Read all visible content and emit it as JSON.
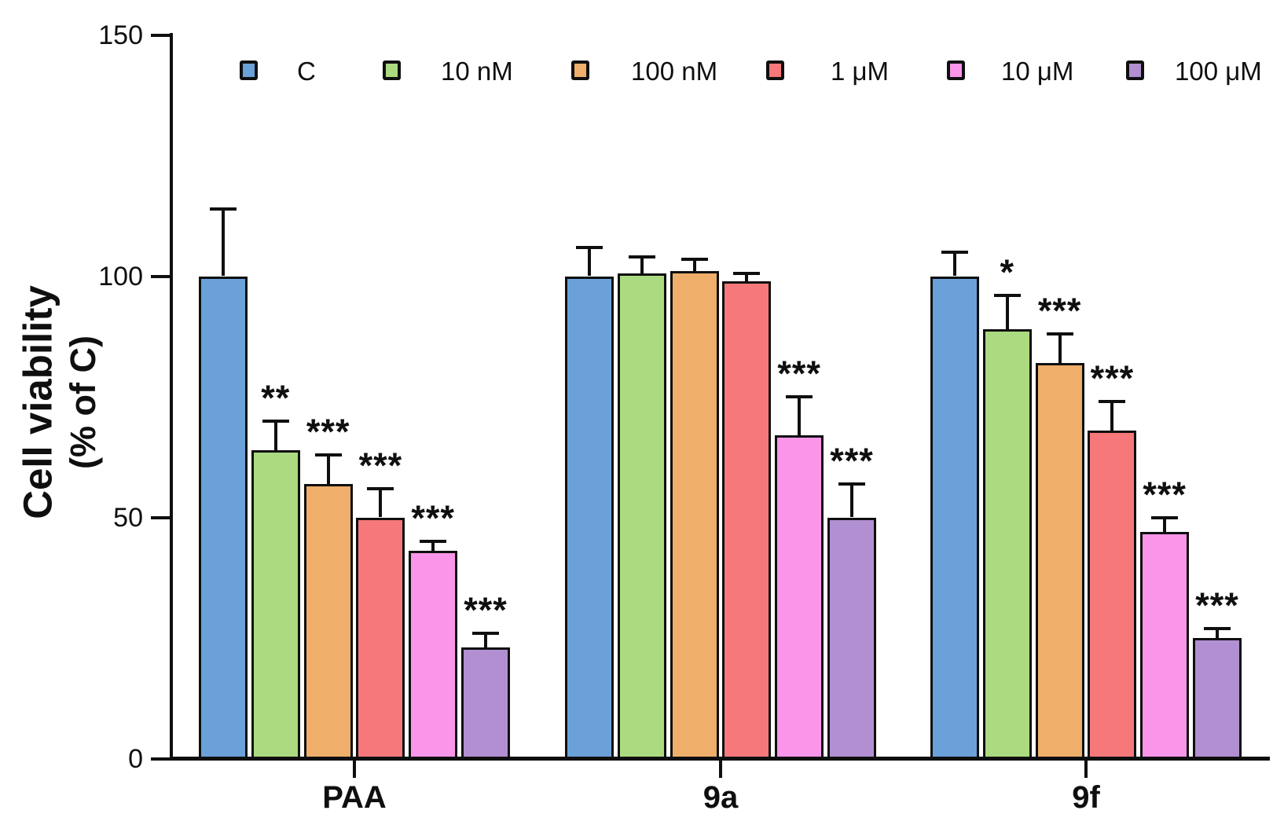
{
  "chart_data": {
    "type": "bar",
    "title": "",
    "ylabel_line1": "Cell viability",
    "ylabel_line2": "(% of C)",
    "xlabel": "",
    "categories": [
      "PAA",
      "9a",
      "9f"
    ],
    "series": [
      {
        "name": "C",
        "color": "#6BA1D9",
        "values": [
          100,
          100,
          100
        ],
        "errors": [
          14,
          6,
          5
        ],
        "significance": [
          "",
          "",
          ""
        ]
      },
      {
        "name": "10 nM",
        "color": "#ABDA80",
        "values": [
          64,
          100.5,
          89
        ],
        "errors": [
          6,
          3.5,
          7
        ],
        "significance": [
          "**",
          "",
          "*"
        ]
      },
      {
        "name": "100 nM",
        "color": "#EFAE6A",
        "values": [
          57,
          101,
          82
        ],
        "errors": [
          6,
          2.5,
          6
        ],
        "significance": [
          "***",
          "",
          "***"
        ]
      },
      {
        "name": "1 μM",
        "color": "#F7787A",
        "values": [
          50,
          99,
          68
        ],
        "errors": [
          6,
          1.5,
          6
        ],
        "significance": [
          "***",
          "",
          "***"
        ]
      },
      {
        "name": "10 μM",
        "color": "#FB95E9",
        "values": [
          43,
          67,
          47
        ],
        "errors": [
          2,
          8,
          3
        ],
        "significance": [
          "***",
          "***",
          "***"
        ]
      },
      {
        "name": "100 μM",
        "color": "#B28FD2",
        "values": [
          23,
          50,
          25
        ],
        "errors": [
          3,
          7,
          2
        ],
        "significance": [
          "***",
          "***",
          "***"
        ]
      }
    ],
    "yticks": [
      0,
      50,
      100,
      150
    ],
    "ylim": [
      0,
      150
    ],
    "grid": false,
    "legend_position": "top",
    "axis_color": "#0f0f0f",
    "background_color": "#ffffff"
  }
}
